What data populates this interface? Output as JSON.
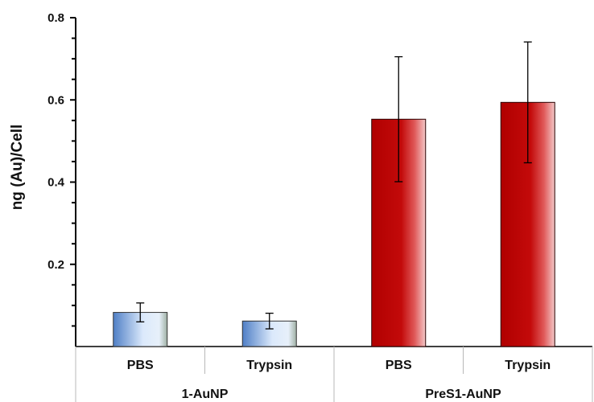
{
  "chart_data": {
    "type": "bar",
    "title": "",
    "xlabel": "",
    "ylabel": "ng (Au)/Cell",
    "ylim": [
      0,
      0.8
    ],
    "yticks": [
      "0.2",
      "0.4",
      "0.6",
      "0.8"
    ],
    "categories": [
      "PBS",
      "Trypsin",
      "PBS",
      "Trypsin"
    ],
    "groups": [
      {
        "label": "1-AuNP",
        "categories": [
          "PBS",
          "Trypsin"
        ]
      },
      {
        "label": "PreS1-AuNP",
        "categories": [
          "PBS",
          "Trypsin"
        ]
      }
    ],
    "values": [
      0.083,
      0.062,
      0.553,
      0.594
    ],
    "errors": [
      0.023,
      0.019,
      0.152,
      0.147
    ],
    "bar_colors": [
      "blue-gradient",
      "blue-gradient",
      "red-gradient",
      "red-gradient"
    ],
    "colors": {
      "blue_light": "#dbe9fb",
      "blue_dark": "#4f7fc6",
      "blue_edge": "#9fb0a4",
      "red_dark": "#b00000",
      "red_light": "#f3c8c8"
    },
    "grid": false,
    "legend": "none"
  }
}
